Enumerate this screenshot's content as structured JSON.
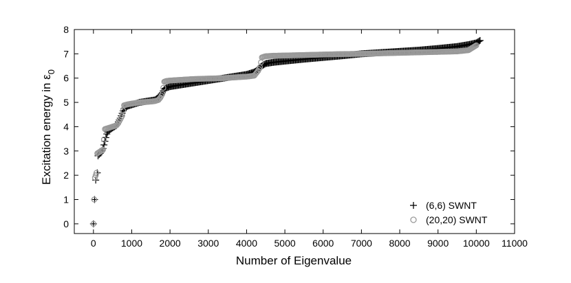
{
  "chart_data": {
    "type": "scatter",
    "xlabel": "Number of Eigenvalue",
    "ylabel_main": "Excitation energy in ε",
    "ylabel_sub": "0",
    "xlim": [
      -500,
      11000
    ],
    "ylim": [
      -0.4,
      8
    ],
    "xticks": [
      0,
      1000,
      2000,
      3000,
      4000,
      5000,
      6000,
      7000,
      8000,
      9000,
      10000,
      11000
    ],
    "yticks": [
      0,
      1,
      2,
      3,
      4,
      5,
      6,
      7,
      8
    ],
    "grid": false,
    "legend_position": "bottom-right",
    "series": [
      {
        "name": "(6,6) SWNT",
        "marker": "plus",
        "color": "#000000",
        "x": [
          0,
          30,
          60,
          100,
          120,
          150,
          200,
          250,
          300,
          350,
          400,
          500,
          600,
          650,
          700,
          750,
          800,
          900,
          1000,
          1100,
          1200,
          1400,
          1600,
          1700,
          1750,
          1800,
          1850,
          1900,
          1950,
          2000,
          2200,
          2400,
          2600,
          2800,
          3000,
          3200,
          3400,
          3600,
          3800,
          4000,
          4200,
          4300,
          4350,
          4400,
          4450,
          4500,
          4700,
          5000,
          5500,
          6000,
          6500,
          7000,
          7500,
          8000,
          8500,
          9000,
          9500,
          9800,
          10000,
          10100
        ],
        "y": [
          0,
          1.0,
          1.8,
          2.1,
          2.8,
          2.85,
          2.95,
          3.1,
          3.4,
          3.7,
          3.85,
          3.95,
          4.05,
          4.2,
          4.35,
          4.55,
          4.75,
          4.85,
          4.9,
          4.95,
          5.0,
          5.05,
          5.1,
          5.2,
          5.3,
          5.4,
          5.55,
          5.6,
          5.62,
          5.65,
          5.7,
          5.75,
          5.8,
          5.85,
          5.9,
          5.95,
          6.0,
          6.05,
          6.1,
          6.15,
          6.25,
          6.35,
          6.45,
          6.5,
          6.55,
          6.6,
          6.65,
          6.7,
          6.78,
          6.85,
          6.92,
          7.0,
          7.05,
          7.1,
          7.15,
          7.22,
          7.3,
          7.38,
          7.45,
          7.55
        ]
      },
      {
        "name": "(20,20) SWNT",
        "marker": "circle",
        "color": "#999999",
        "x": [
          0,
          20,
          40,
          60,
          80,
          100,
          150,
          200,
          250,
          300,
          400,
          500,
          600,
          650,
          700,
          750,
          800,
          900,
          1000,
          1100,
          1200,
          1400,
          1600,
          1700,
          1750,
          1800,
          1850,
          1900,
          2000,
          2200,
          2400,
          2600,
          2800,
          3000,
          3200,
          3400,
          3600,
          3800,
          4000,
          4200,
          4300,
          4350,
          4400,
          4450,
          4500,
          4700,
          5000,
          5500,
          6000,
          6500,
          7000,
          7500,
          8000,
          8500,
          9000,
          9500,
          9800,
          10000
        ],
        "y": [
          0,
          1.0,
          1.9,
          2.0,
          2.1,
          2.9,
          2.95,
          3.0,
          3.05,
          3.9,
          3.95,
          4.0,
          4.05,
          4.15,
          4.3,
          4.45,
          4.88,
          4.92,
          4.95,
          4.97,
          5.0,
          5.02,
          5.05,
          5.1,
          5.2,
          5.35,
          5.85,
          5.88,
          5.9,
          5.92,
          5.94,
          5.96,
          5.97,
          5.98,
          5.99,
          6.0,
          6.02,
          6.04,
          6.06,
          6.1,
          6.3,
          6.45,
          6.85,
          6.88,
          6.9,
          6.92,
          6.93,
          6.95,
          6.97,
          6.99,
          7.0,
          7.02,
          7.04,
          7.06,
          7.08,
          7.1,
          7.15,
          7.35
        ]
      }
    ]
  }
}
